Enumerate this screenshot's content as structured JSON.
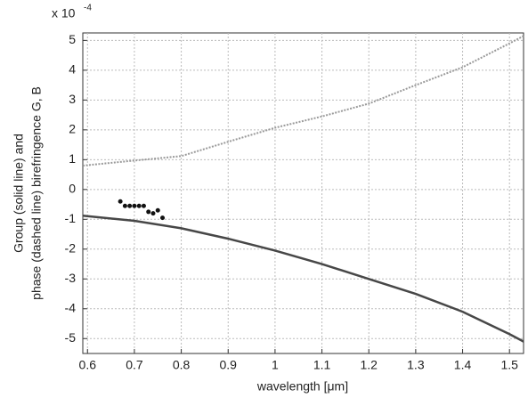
{
  "chart_data": {
    "type": "line",
    "xlabel": "wavelength [μm]",
    "ylabel": [
      "Group (solid line) and",
      "phase (dashed line) birefringence G, B"
    ],
    "y_multiplier": "x 10",
    "y_exponent": "-4",
    "xlim": [
      0.59,
      1.53
    ],
    "ylim": [
      -5.5,
      5.25
    ],
    "xticks": [
      0.6,
      0.7,
      0.8,
      0.9,
      1,
      1.1,
      1.2,
      1.3,
      1.4,
      1.5
    ],
    "yticks": [
      -5,
      -4,
      -3,
      -2,
      -1,
      0,
      1,
      2,
      3,
      4,
      5
    ],
    "grid": true,
    "series": [
      {
        "color": "#9a9a9a",
        "style": "dashed",
        "x": [
          0.59,
          0.7,
          0.8,
          0.9,
          1,
          1.1,
          1.2,
          1.3,
          1.4,
          1.5,
          1.53
        ],
        "values": [
          0.8,
          0.97,
          1.12,
          1.6,
          2.07,
          2.45,
          2.88,
          3.5,
          4.1,
          4.9,
          5.15
        ]
      },
      {
        "color": "#474747",
        "style": "solid",
        "x": [
          0.59,
          0.7,
          0.8,
          0.9,
          1,
          1.1,
          1.2,
          1.3,
          1.4,
          1.5,
          1.53
        ],
        "values": [
          -0.88,
          -1.05,
          -1.3,
          -1.65,
          -2.05,
          -2.5,
          -3.0,
          -3.5,
          -4.1,
          -4.85,
          -5.1
        ]
      },
      {
        "color": "#111111",
        "style": "dots",
        "x": [
          0.67,
          0.68,
          0.69,
          0.7,
          0.71,
          0.72,
          0.73,
          0.74,
          0.75,
          0.76
        ],
        "values": [
          -0.4,
          -0.55,
          -0.55,
          -0.55,
          -0.55,
          -0.55,
          -0.75,
          -0.8,
          -0.7,
          -0.95
        ]
      }
    ]
  }
}
